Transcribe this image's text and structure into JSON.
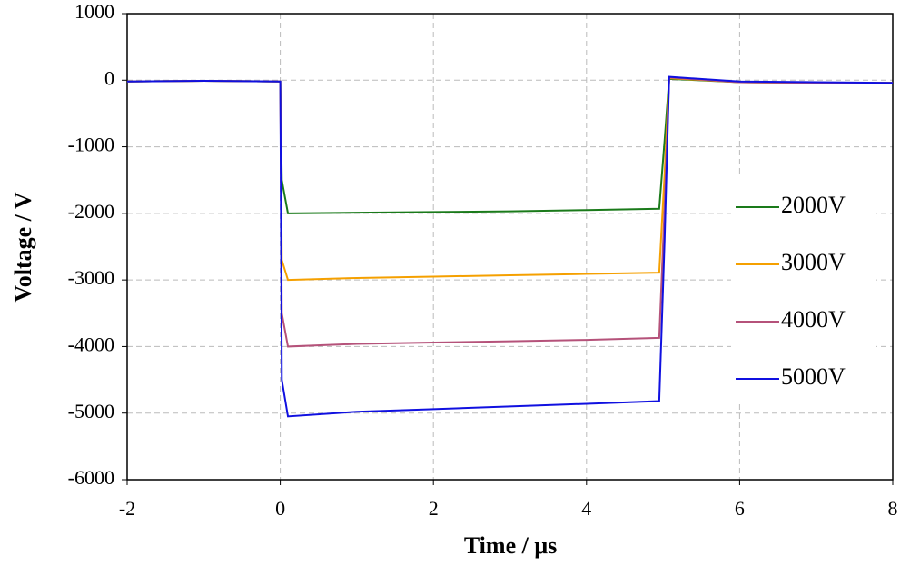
{
  "chart_data": {
    "type": "line",
    "x_label": "Time / μs",
    "y_label": "Voltage / V",
    "x": [
      -2,
      -1,
      0,
      0.02,
      0.1,
      1,
      2,
      3,
      4,
      4.95,
      5.02,
      5.08,
      6,
      7,
      8
    ],
    "series": [
      {
        "name": "2000V",
        "color": "#1a7a1a",
        "values": [
          -20,
          -10,
          -20,
          -1500,
          -2000,
          -1990,
          -1980,
          -1970,
          -1950,
          -1930,
          -900,
          20,
          -30,
          -40,
          -40
        ]
      },
      {
        "name": "3000V",
        "color": "#f5a000",
        "values": [
          -20,
          -10,
          -20,
          -2700,
          -3000,
          -2970,
          -2950,
          -2930,
          -2910,
          -2890,
          -1400,
          30,
          -30,
          -40,
          -40
        ]
      },
      {
        "name": "4000V",
        "color": "#b5527a",
        "values": [
          -20,
          -10,
          -20,
          -3500,
          -4000,
          -3960,
          -3940,
          -3920,
          -3900,
          -3870,
          -1900,
          40,
          -30,
          -40,
          -40
        ]
      },
      {
        "name": "5000V",
        "color": "#1010e0",
        "values": [
          -20,
          -10,
          -20,
          -4500,
          -5050,
          -4980,
          -4940,
          -4900,
          -4860,
          -4820,
          -2400,
          50,
          -20,
          -30,
          -40
        ]
      }
    ],
    "xlim": [
      -2,
      8
    ],
    "xticks": [
      -2,
      0,
      2,
      4,
      6,
      8
    ],
    "ylim": [
      -6000,
      1000
    ],
    "yticks": [
      1000,
      0,
      -1000,
      -2000,
      -3000,
      -4000,
      -5000,
      -6000
    ],
    "grid": true,
    "legend": "right"
  }
}
